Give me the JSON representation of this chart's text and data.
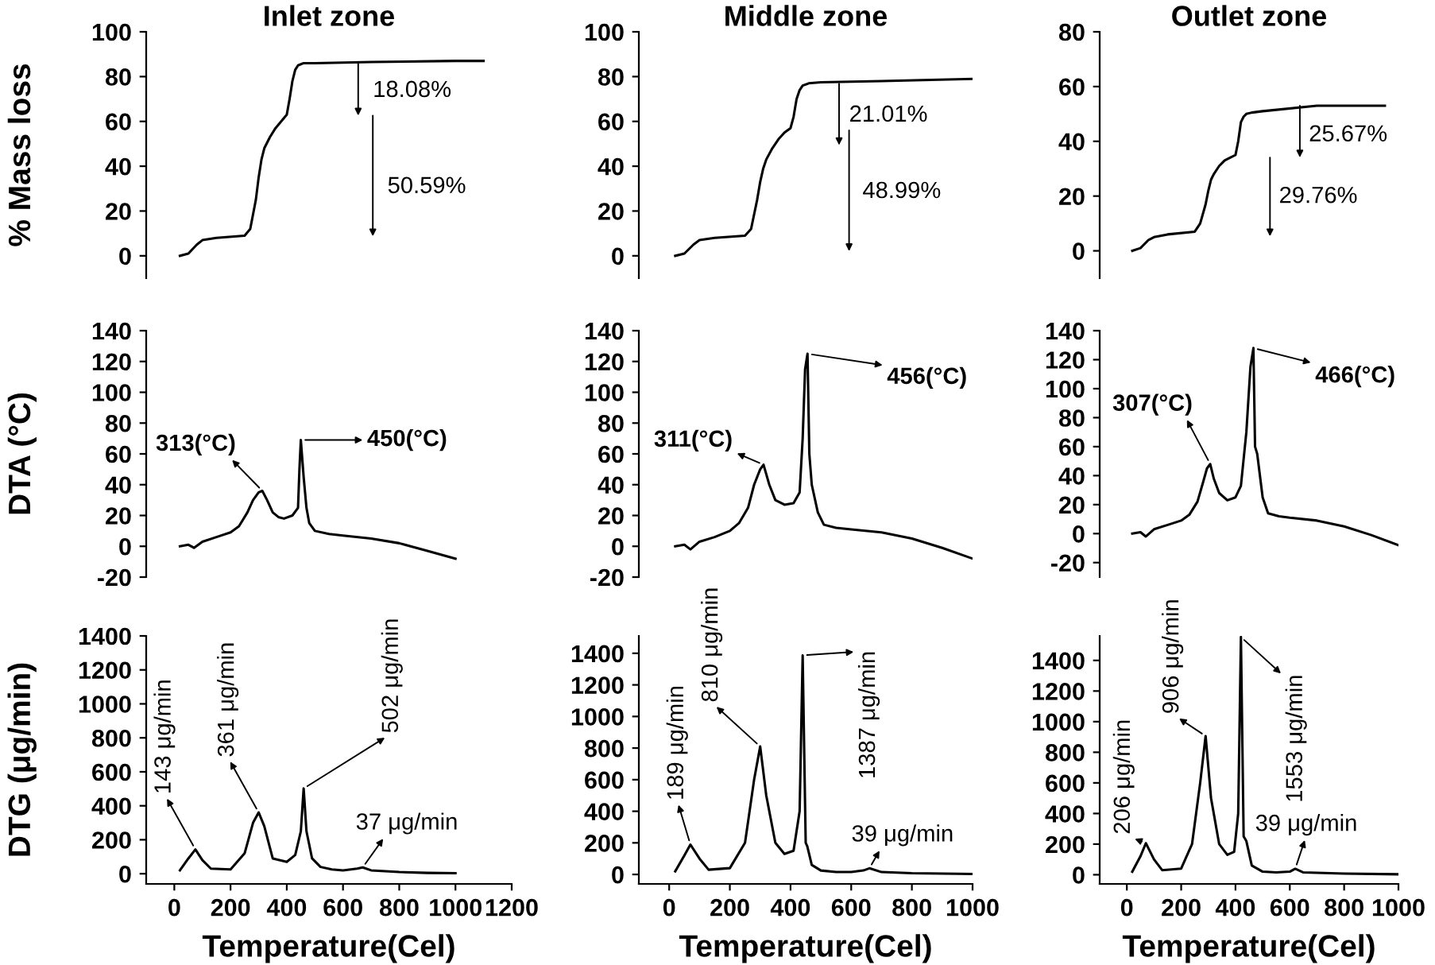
{
  "chart_data": [
    {
      "type": "line",
      "title": "Inlet zone",
      "ylabel": "% Mass loss",
      "xlim": [
        -100,
        1200
      ],
      "ylim": [
        -10,
        100
      ],
      "yticks": [
        0,
        20,
        40,
        60,
        80,
        100
      ],
      "tick_labels": "y",
      "series": [
        {
          "color": "#000000",
          "x": [
            20,
            50,
            80,
            100,
            150,
            250,
            270,
            290,
            300,
            310,
            320,
            340,
            360,
            380,
            400,
            410,
            420,
            430,
            440,
            460,
            500,
            700,
            1000,
            1100
          ],
          "values": [
            0,
            1,
            5,
            7,
            8,
            9,
            12,
            25,
            35,
            43,
            48,
            53,
            57,
            60,
            63,
            70,
            78,
            83,
            85,
            86,
            86,
            86.5,
            87,
            87
          ]
        }
      ],
      "annotations": [
        "18.08%",
        "50.59%"
      ]
    },
    {
      "type": "line",
      "title": "Middle zone",
      "xlim": [
        -100,
        1000
      ],
      "ylim": [
        -10,
        100
      ],
      "yticks": [
        0,
        20,
        40,
        60,
        80,
        100
      ],
      "tick_labels": "y",
      "series": [
        {
          "color": "#000000",
          "x": [
            20,
            50,
            80,
            100,
            150,
            250,
            270,
            290,
            300,
            310,
            320,
            340,
            360,
            380,
            400,
            410,
            420,
            430,
            440,
            460,
            500,
            700,
            1000
          ],
          "values": [
            0,
            1,
            5,
            7,
            8,
            9,
            12,
            25,
            33,
            39,
            43,
            48,
            52,
            55,
            57,
            62,
            70,
            74,
            76,
            77,
            77.5,
            78,
            79
          ]
        }
      ],
      "annotations": [
        "21.01%",
        "48.99%"
      ]
    },
    {
      "type": "line",
      "title": "Outlet zone",
      "xlim": [
        -100,
        1000
      ],
      "ylim": [
        -10,
        80
      ],
      "yticks": [
        0,
        20,
        40,
        60,
        80
      ],
      "tick_labels": "y",
      "series": [
        {
          "color": "#000000",
          "x": [
            20,
            50,
            80,
            100,
            150,
            250,
            270,
            290,
            300,
            310,
            320,
            340,
            360,
            380,
            400,
            410,
            420,
            430,
            440,
            460,
            500,
            700,
            950
          ],
          "values": [
            0,
            1,
            4,
            5,
            6,
            7,
            10,
            17,
            22,
            26,
            28,
            31,
            33,
            34,
            35,
            40,
            47,
            49,
            50,
            50.5,
            51,
            53,
            53
          ]
        }
      ],
      "annotations": [
        "25.67%",
        "29.76%"
      ]
    },
    {
      "type": "line",
      "ylabel": "DTA (°C)",
      "xlim": [
        -100,
        1200
      ],
      "ylim": [
        -20,
        140
      ],
      "yticks": [
        -20,
        0,
        20,
        40,
        60,
        80,
        100,
        120,
        140
      ],
      "tick_labels": "y",
      "series": [
        {
          "color": "#000000",
          "x": [
            20,
            50,
            70,
            100,
            150,
            200,
            230,
            260,
            280,
            300,
            313,
            330,
            350,
            370,
            390,
            420,
            440,
            445,
            450,
            460,
            470,
            480,
            500,
            550,
            600,
            700,
            800,
            900,
            1000
          ],
          "values": [
            0,
            1,
            -1,
            3,
            6,
            9,
            13,
            22,
            30,
            35,
            36,
            30,
            22,
            19,
            18,
            20,
            25,
            50,
            69,
            45,
            25,
            15,
            10,
            8,
            7,
            5,
            2,
            -3,
            -8
          ]
        }
      ],
      "annotations": [
        {
          "text": "313(°C)",
          "x": 313,
          "y": 36
        },
        {
          "text": "450(°C)",
          "x": 450,
          "y": 69
        }
      ]
    },
    {
      "type": "line",
      "xlim": [
        -100,
        1000
      ],
      "ylim": [
        -20,
        140
      ],
      "yticks": [
        -20,
        0,
        20,
        40,
        60,
        80,
        100,
        120,
        140
      ],
      "tick_labels": "y",
      "series": [
        {
          "color": "#000000",
          "x": [
            20,
            50,
            70,
            100,
            150,
            200,
            230,
            260,
            280,
            300,
            311,
            330,
            350,
            380,
            410,
            430,
            440,
            448,
            456,
            462,
            470,
            490,
            510,
            550,
            600,
            700,
            800,
            900,
            1000
          ],
          "values": [
            0,
            1,
            -2,
            3,
            6,
            10,
            15,
            25,
            40,
            50,
            53,
            40,
            30,
            27,
            28,
            35,
            70,
            115,
            125,
            60,
            40,
            22,
            14,
            12,
            11,
            9,
            5,
            -1,
            -8
          ]
        }
      ],
      "annotations": [
        {
          "text": "311(°C)",
          "x": 311,
          "y": 53
        },
        {
          "text": "456(°C)",
          "x": 456,
          "y": 125
        }
      ]
    },
    {
      "type": "line",
      "xlim": [
        -100,
        1000
      ],
      "ylim": [
        -30,
        140
      ],
      "yticks": [
        -20,
        0,
        20,
        40,
        60,
        80,
        100,
        120,
        140
      ],
      "tick_labels": "y",
      "series": [
        {
          "color": "#000000",
          "x": [
            20,
            50,
            70,
            100,
            150,
            200,
            230,
            260,
            280,
            295,
            307,
            320,
            340,
            370,
            400,
            420,
            440,
            455,
            466,
            472,
            480,
            500,
            520,
            560,
            600,
            700,
            800,
            900,
            1000
          ],
          "values": [
            0,
            1,
            -2,
            3,
            6,
            9,
            13,
            22,
            35,
            45,
            48,
            38,
            28,
            23,
            25,
            33,
            70,
            115,
            128,
            60,
            55,
            25,
            14,
            12,
            11,
            9,
            5,
            -1,
            -8
          ]
        }
      ],
      "annotations": [
        {
          "text": "307(°C)",
          "x": 307,
          "y": 48
        },
        {
          "text": "466(°C)",
          "x": 466,
          "y": 128
        }
      ]
    },
    {
      "type": "line",
      "ylabel": "DTG (μg/min)",
      "xlabel": "Temperature(Cel)",
      "xlim": [
        -100,
        1200
      ],
      "xticks": [
        0,
        200,
        400,
        600,
        800,
        1000,
        1200
      ],
      "ylim": [
        -60,
        1400
      ],
      "yticks": [
        0,
        200,
        400,
        600,
        800,
        1000,
        1200,
        1400
      ],
      "series": [
        {
          "color": "#000000",
          "x": [
            20,
            50,
            75,
            100,
            130,
            200,
            250,
            280,
            300,
            320,
            350,
            400,
            430,
            450,
            460,
            470,
            490,
            520,
            560,
            600,
            650,
            670,
            700,
            800,
            900,
            1000
          ],
          "values": [
            20,
            90,
            143,
            80,
            30,
            25,
            120,
            300,
            361,
            280,
            90,
            70,
            110,
            250,
            502,
            250,
            90,
            40,
            25,
            20,
            30,
            37,
            20,
            10,
            5,
            3
          ]
        }
      ],
      "annotations": [
        {
          "text": "143 μg/min",
          "x": 75,
          "y": 143
        },
        {
          "text": "361 μg/min",
          "x": 300,
          "y": 361
        },
        {
          "text": "502 μg/min",
          "x": 460,
          "y": 502
        },
        {
          "text": "37 μg/min",
          "x": 670,
          "y": 37
        }
      ]
    },
    {
      "type": "line",
      "xlabel": "Temperature(Cel)",
      "xlim": [
        -100,
        1000
      ],
      "xticks": [
        0,
        200,
        400,
        600,
        800,
        1000
      ],
      "ylim": [
        -60,
        1510
      ],
      "yticks": [
        0,
        200,
        400,
        600,
        800,
        1000,
        1200,
        1400
      ],
      "series": [
        {
          "color": "#000000",
          "x": [
            20,
            50,
            70,
            100,
            130,
            200,
            250,
            280,
            300,
            320,
            350,
            380,
            410,
            430,
            440,
            450,
            455,
            470,
            500,
            550,
            600,
            640,
            660,
            700,
            800,
            1000
          ],
          "values": [
            20,
            120,
            189,
            100,
            30,
            40,
            200,
            600,
            810,
            500,
            200,
            130,
            150,
            400,
            1387,
            200,
            180,
            60,
            25,
            15,
            15,
            25,
            39,
            15,
            8,
            3
          ]
        }
      ],
      "annotations": [
        {
          "text": "189 μg/min",
          "x": 70,
          "y": 189
        },
        {
          "text": "810 μg/min",
          "x": 300,
          "y": 810
        },
        {
          "text": "1387 μg/min",
          "x": 440,
          "y": 1387
        },
        {
          "text": "39 μg/min",
          "x": 660,
          "y": 39
        }
      ]
    },
    {
      "type": "line",
      "xlabel": "Temperature(Cel)",
      "xlim": [
        -100,
        1000
      ],
      "xticks": [
        0,
        200,
        400,
        600,
        800,
        1000
      ],
      "ylim": [
        -60,
        1560
      ],
      "yticks": [
        0,
        200,
        400,
        600,
        800,
        1000,
        1200,
        1400
      ],
      "series": [
        {
          "color": "#000000",
          "x": [
            20,
            50,
            70,
            100,
            130,
            200,
            240,
            270,
            290,
            310,
            340,
            370,
            395,
            410,
            420,
            430,
            440,
            460,
            500,
            550,
            600,
            620,
            650,
            800,
            1000
          ],
          "values": [
            20,
            120,
            206,
            100,
            30,
            40,
            200,
            600,
            906,
            500,
            200,
            130,
            150,
            400,
            1553,
            250,
            220,
            60,
            20,
            15,
            20,
            39,
            15,
            8,
            3
          ]
        }
      ],
      "annotations": [
        {
          "text": "206 μg/min",
          "x": 70,
          "y": 206
        },
        {
          "text": "906 μg/min",
          "x": 290,
          "y": 906
        },
        {
          "text": "1553 μg/min",
          "x": 420,
          "y": 1553
        },
        {
          "text": "39 μg/min",
          "x": 620,
          "y": 39
        }
      ]
    }
  ]
}
